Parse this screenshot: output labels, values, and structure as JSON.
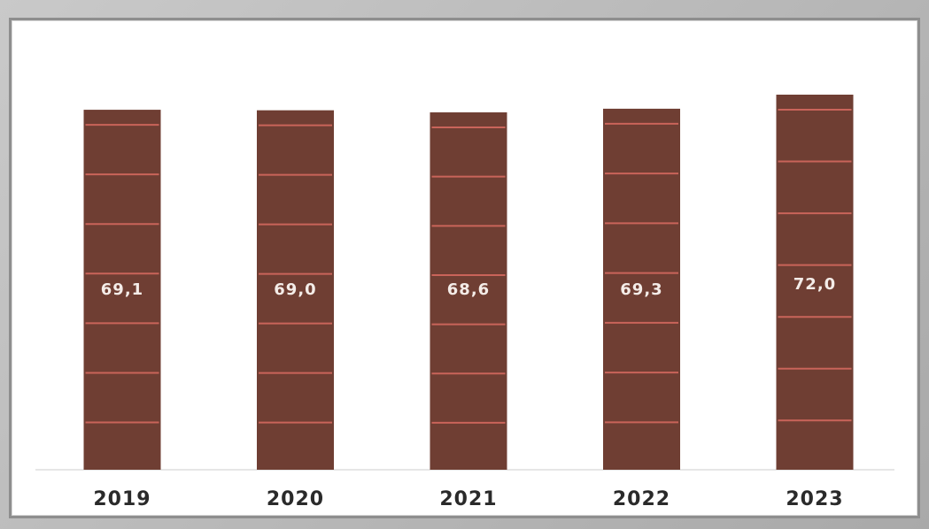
{
  "chart_data": {
    "type": "bar",
    "categories": [
      "2019",
      "2020",
      "2021",
      "2022",
      "2023"
    ],
    "values": [
      69.1,
      69.0,
      68.6,
      69.3,
      72.0
    ],
    "value_labels": [
      "69,1",
      "69,0",
      "68,6",
      "69,3",
      "72,0"
    ],
    "title": "",
    "xlabel": "",
    "ylabel": "",
    "ylim": [
      0,
      72
    ],
    "grid": false,
    "legend": "none",
    "colors": {
      "bar": "#6f3e33",
      "bar_stripe": "#c9645a",
      "value_text": "#f4ece8",
      "category_text": "#2a2a2a"
    }
  }
}
